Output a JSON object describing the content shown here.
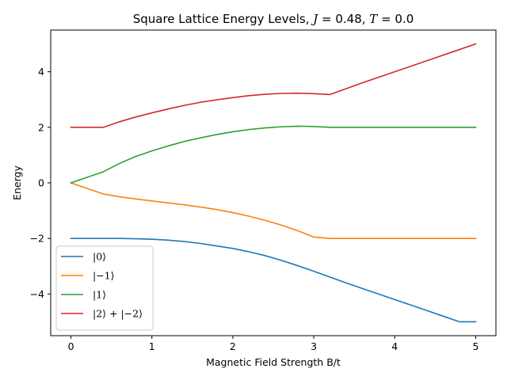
{
  "chart_data": {
    "type": "line",
    "title": "Square Lattice Energy Levels, J = 0.48, T = 0.0",
    "title_parts": {
      "prefix": "Square Lattice Energy Levels, ",
      "var1": "J",
      "eq1": " = 0.48, ",
      "var2": "T",
      "eq2": " = 0.0"
    },
    "xlabel": "Magnetic Field Strength B/t",
    "ylabel": "Energy",
    "xlim": [
      -0.25,
      5.25
    ],
    "ylim": [
      -5.5,
      5.5
    ],
    "xticks": [
      0,
      1,
      2,
      3,
      4,
      5
    ],
    "xtick_labels": [
      "0",
      "1",
      "2",
      "3",
      "4",
      "5"
    ],
    "yticks": [
      -4,
      -2,
      0,
      2,
      4
    ],
    "ytick_labels": [
      "−4",
      "−2",
      "0",
      "2",
      "4"
    ],
    "grid": false,
    "legend_position": "lower-left",
    "series": [
      {
        "name": "|0⟩",
        "color": "#1f77b4",
        "x": [
          0,
          0.4,
          0.6,
          0.8,
          1.0,
          1.2,
          1.4,
          1.6,
          1.8,
          2.0,
          2.2,
          2.4,
          2.6,
          2.8,
          3.0,
          3.2,
          3.4,
          3.6,
          3.8,
          4.0,
          4.2,
          4.4,
          4.6,
          4.8,
          5.0
        ],
        "y": [
          -2.0,
          -2.0,
          -2.0,
          -2.01,
          -2.03,
          -2.06,
          -2.11,
          -2.18,
          -2.27,
          -2.36,
          -2.48,
          -2.62,
          -2.79,
          -2.98,
          -3.18,
          -3.39,
          -3.6,
          -3.8,
          -4.0,
          -4.2,
          -4.4,
          -4.6,
          -4.8,
          -5.0,
          -5.0
        ]
      },
      {
        "name": "|−1⟩",
        "color": "#ff7f0e",
        "x": [
          0,
          0.4,
          0.6,
          0.8,
          1.0,
          1.2,
          1.4,
          1.6,
          1.8,
          2.0,
          2.2,
          2.4,
          2.6,
          2.8,
          3.0,
          3.2,
          3.6,
          4.0,
          4.4,
          4.8,
          5.0
        ],
        "y": [
          0.0,
          -0.4,
          -0.5,
          -0.58,
          -0.65,
          -0.72,
          -0.79,
          -0.87,
          -0.96,
          -1.07,
          -1.2,
          -1.35,
          -1.52,
          -1.72,
          -1.95,
          -2.0,
          -2.0,
          -2.0,
          -2.0,
          -2.0,
          -2.0
        ]
      },
      {
        "name": "|1⟩",
        "color": "#2ca02c",
        "x": [
          0,
          0.4,
          0.6,
          0.8,
          1.0,
          1.2,
          1.4,
          1.6,
          1.8,
          2.0,
          2.2,
          2.4,
          2.6,
          2.8,
          3.0,
          3.2,
          3.6,
          4.0,
          4.4,
          4.8,
          5.0
        ],
        "y": [
          0.0,
          0.4,
          0.7,
          0.95,
          1.15,
          1.33,
          1.49,
          1.62,
          1.74,
          1.84,
          1.92,
          1.98,
          2.02,
          2.04,
          2.03,
          2.0,
          2.0,
          2.0,
          2.0,
          2.0,
          2.0
        ]
      },
      {
        "name": "|2⟩ + |−2⟩",
        "color": "#d62728",
        "x": [
          0,
          0.4,
          0.6,
          0.8,
          1.0,
          1.2,
          1.4,
          1.6,
          1.8,
          2.0,
          2.2,
          2.4,
          2.6,
          2.8,
          3.0,
          3.2,
          3.6,
          4.0,
          4.4,
          4.8,
          5.0
        ],
        "y": [
          2.0,
          2.0,
          2.2,
          2.37,
          2.52,
          2.66,
          2.79,
          2.9,
          2.99,
          3.07,
          3.14,
          3.19,
          3.22,
          3.23,
          3.21,
          3.18,
          3.6,
          4.0,
          4.4,
          4.8,
          5.0
        ]
      }
    ]
  }
}
